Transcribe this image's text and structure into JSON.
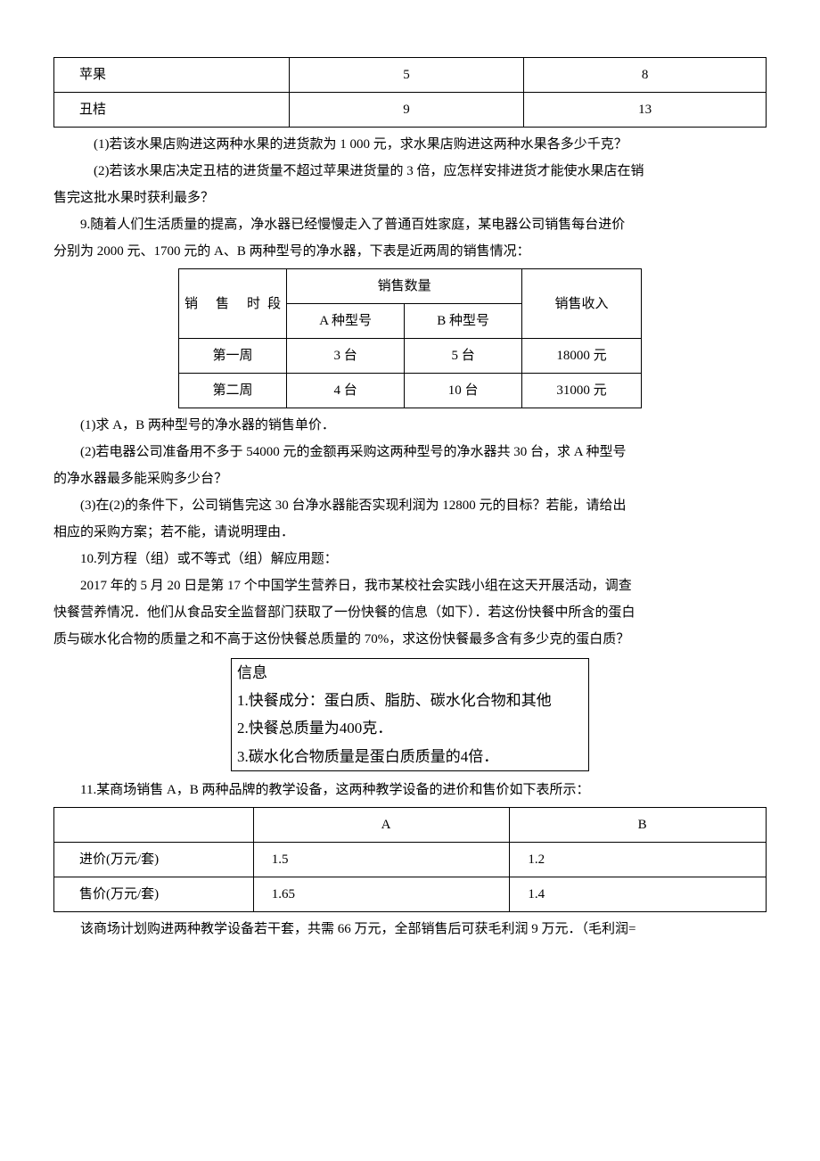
{
  "fruit_table": {
    "rows": [
      {
        "name": "苹果",
        "c2": "5",
        "c3": "8"
      },
      {
        "name": "丑桔",
        "c2": "9",
        "c3": "13"
      }
    ]
  },
  "q8_1": "(1)若该水果店购进这两种水果的进货款为 1 000 元，求水果店购进这两种水果各多少千克？",
  "q8_2a": "(2)若该水果店决定丑桔的进货量不超过苹果进货量的 3 倍，应怎样安排进货才能使水果店在销",
  "q8_2b": "售完这批水果时获利最多？",
  "q9_a": "9.随着人们生活质量的提高，净水器已经慢慢走入了普通百姓家庭，某电器公司销售每台进价",
  "q9_b": "分别为 2000 元、1700 元的 A、B 两种型号的净水器，下表是近两周的销售情况：",
  "purifier_table": {
    "h1": "销 售 时段",
    "h2": "销售数量",
    "h3": "销售收入",
    "sub_a": "A 种型号",
    "sub_b": "B 种型号",
    "rows": [
      {
        "period": "第一周",
        "a": "3 台",
        "b": "5 台",
        "rev": "18000 元"
      },
      {
        "period": "第二周",
        "a": "4 台",
        "b": "10 台",
        "rev": "31000 元"
      }
    ]
  },
  "q9_1": "(1)求 A，B 两种型号的净水器的销售单价．",
  "q9_2a": "(2)若电器公司准备用不多于 54000 元的金额再采购这两种型号的净水器共 30 台，求 A 种型号",
  "q9_2b": "的净水器最多能采购多少台？",
  "q9_3a": "(3)在(2)的条件下，公司销售完这 30 台净水器能否实现利润为 12800 元的目标？若能，请给出",
  "q9_3b": "相应的采购方案；若不能，请说明理由．",
  "q10_a": "10.列方程（组）或不等式（组）解应用题：",
  "q10_b": "2017 年的 5 月 20 日是第 17 个中国学生营养日，我市某校社会实践小组在这天开展活动，调查",
  "q10_c": "快餐营养情况．他们从食品安全监督部门获取了一份快餐的信息（如下）．若这份快餐中所含的蛋白",
  "q10_d": "质与碳水化合物的质量之和不高于这份快餐总质量的 70%，求这份快餐最多含有多少克的蛋白质？",
  "info_box": {
    "l1": "信息",
    "l2": "1.快餐成分：蛋白质、脂肪、碳水化合物和其他",
    "l3": "2.快餐总质量为400克．",
    "l4": "3.碳水化合物质量是蛋白质质量的4倍．"
  },
  "q11_a": "11.某商场销售 A，B 两种品牌的教学设备，这两种教学设备的进价和售价如下表所示：",
  "ab_table": {
    "h2": "A",
    "h3": "B",
    "rows": [
      {
        "label": "进价(万元/套)",
        "a": "1.5",
        "b": "1.2"
      },
      {
        "label": "售价(万元/套)",
        "a": "1.65",
        "b": "1.4"
      }
    ]
  },
  "q11_b": "该商场计划购进两种教学设备若干套，共需 66 万元，全部销售后可获毛利润 9 万元．（毛利润="
}
